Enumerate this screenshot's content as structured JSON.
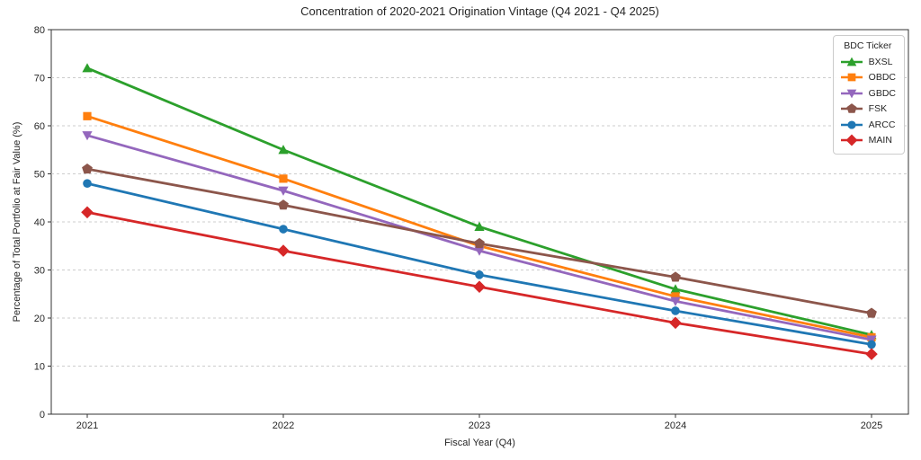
{
  "chart_data": {
    "type": "line",
    "title": "Concentration of 2020-2021 Origination Vintage (Q4 2021 - Q4 2025)",
    "xlabel": "Fiscal Year (Q4)",
    "ylabel": "Percentage of Total Portfolio at Fair Value (%)",
    "x": [
      2021,
      2022,
      2023,
      2024,
      2025
    ],
    "ylim": [
      0,
      80
    ],
    "yticks": [
      0,
      10,
      20,
      30,
      40,
      50,
      60,
      70,
      80
    ],
    "grid": "horizontal-dashed",
    "legend": {
      "title": "BDC Ticker",
      "position": "upper-right"
    },
    "series": [
      {
        "name": "BXSL",
        "color": "#2ca02c",
        "marker": "triangle-up",
        "values": [
          72,
          55,
          39,
          26,
          16.5
        ]
      },
      {
        "name": "OBDC",
        "color": "#ff7f0e",
        "marker": "square",
        "values": [
          62,
          49,
          35,
          24.5,
          16
        ]
      },
      {
        "name": "GBDC",
        "color": "#9467bd",
        "marker": "triangle-down",
        "values": [
          58,
          46.5,
          34,
          23.5,
          15.5
        ]
      },
      {
        "name": "FSK",
        "color": "#8c564b",
        "marker": "pentagon",
        "values": [
          51,
          43.5,
          35.5,
          28.5,
          21
        ]
      },
      {
        "name": "ARCC",
        "color": "#1f77b4",
        "marker": "circle",
        "values": [
          48,
          38.5,
          29,
          21.5,
          14.5
        ]
      },
      {
        "name": "MAIN",
        "color": "#d62728",
        "marker": "diamond",
        "values": [
          42,
          34,
          26.5,
          19,
          12.5
        ]
      }
    ],
    "colors": {
      "grid": "#cccccc",
      "spine": "#333333",
      "text": "#262626",
      "background": "#ffffff"
    }
  }
}
